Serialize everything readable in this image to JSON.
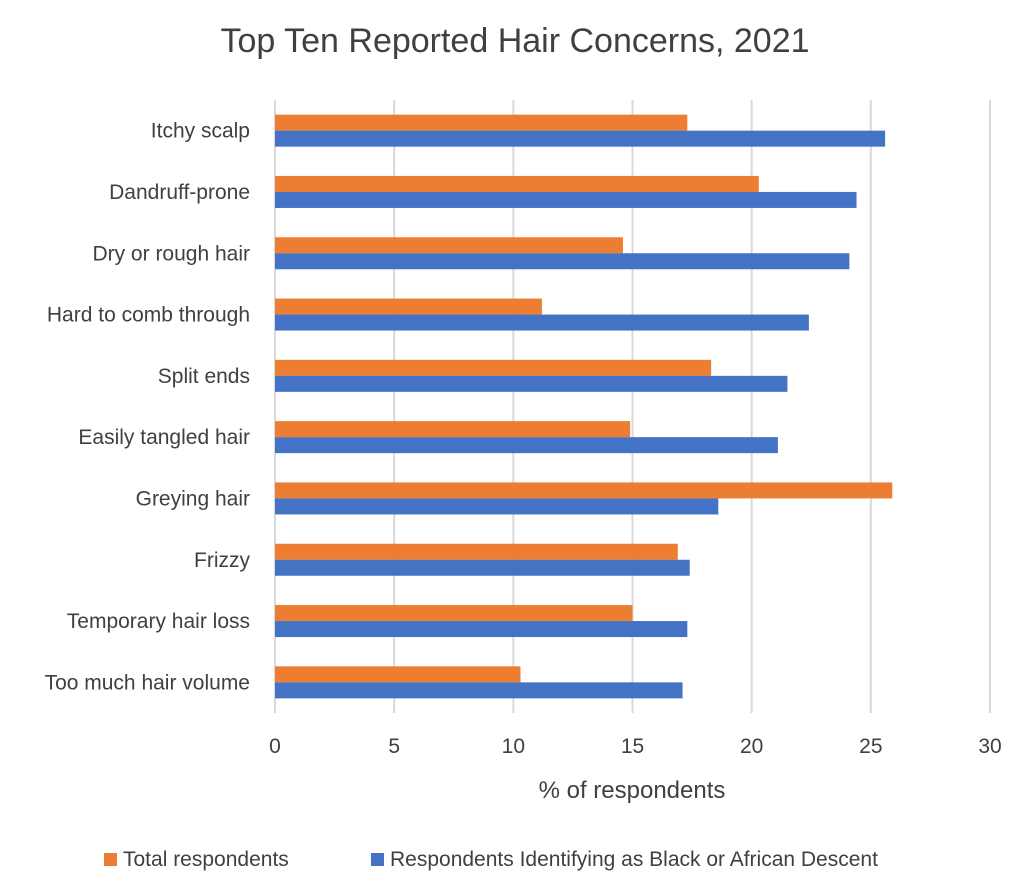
{
  "chart_data": {
    "type": "bar",
    "orientation": "horizontal",
    "title": "Top Ten Reported Hair Concerns, 2021",
    "xlabel": "% of respondents",
    "ylabel": "",
    "xlim": [
      0,
      30
    ],
    "xticks": [
      0,
      5,
      10,
      15,
      20,
      25,
      30
    ],
    "grid": true,
    "legend_position": "bottom",
    "categories": [
      "Itchy scalp",
      "Dandruff-prone",
      "Dry or rough hair",
      "Hard to comb through",
      "Split ends",
      "Easily tangled hair",
      "Greying hair",
      "Frizzy",
      "Temporary hair loss",
      "Too much hair volume"
    ],
    "series": [
      {
        "name": "Total respondents",
        "color": "#ed7d31",
        "values": [
          17.3,
          20.3,
          14.6,
          11.2,
          18.3,
          14.9,
          25.9,
          16.9,
          15.0,
          10.3
        ]
      },
      {
        "name": "Respondents Identifying as Black or African Descent",
        "color": "#4472c4",
        "values": [
          25.6,
          24.4,
          24.1,
          22.4,
          21.5,
          21.1,
          18.6,
          17.4,
          17.3,
          17.1
        ]
      }
    ]
  }
}
